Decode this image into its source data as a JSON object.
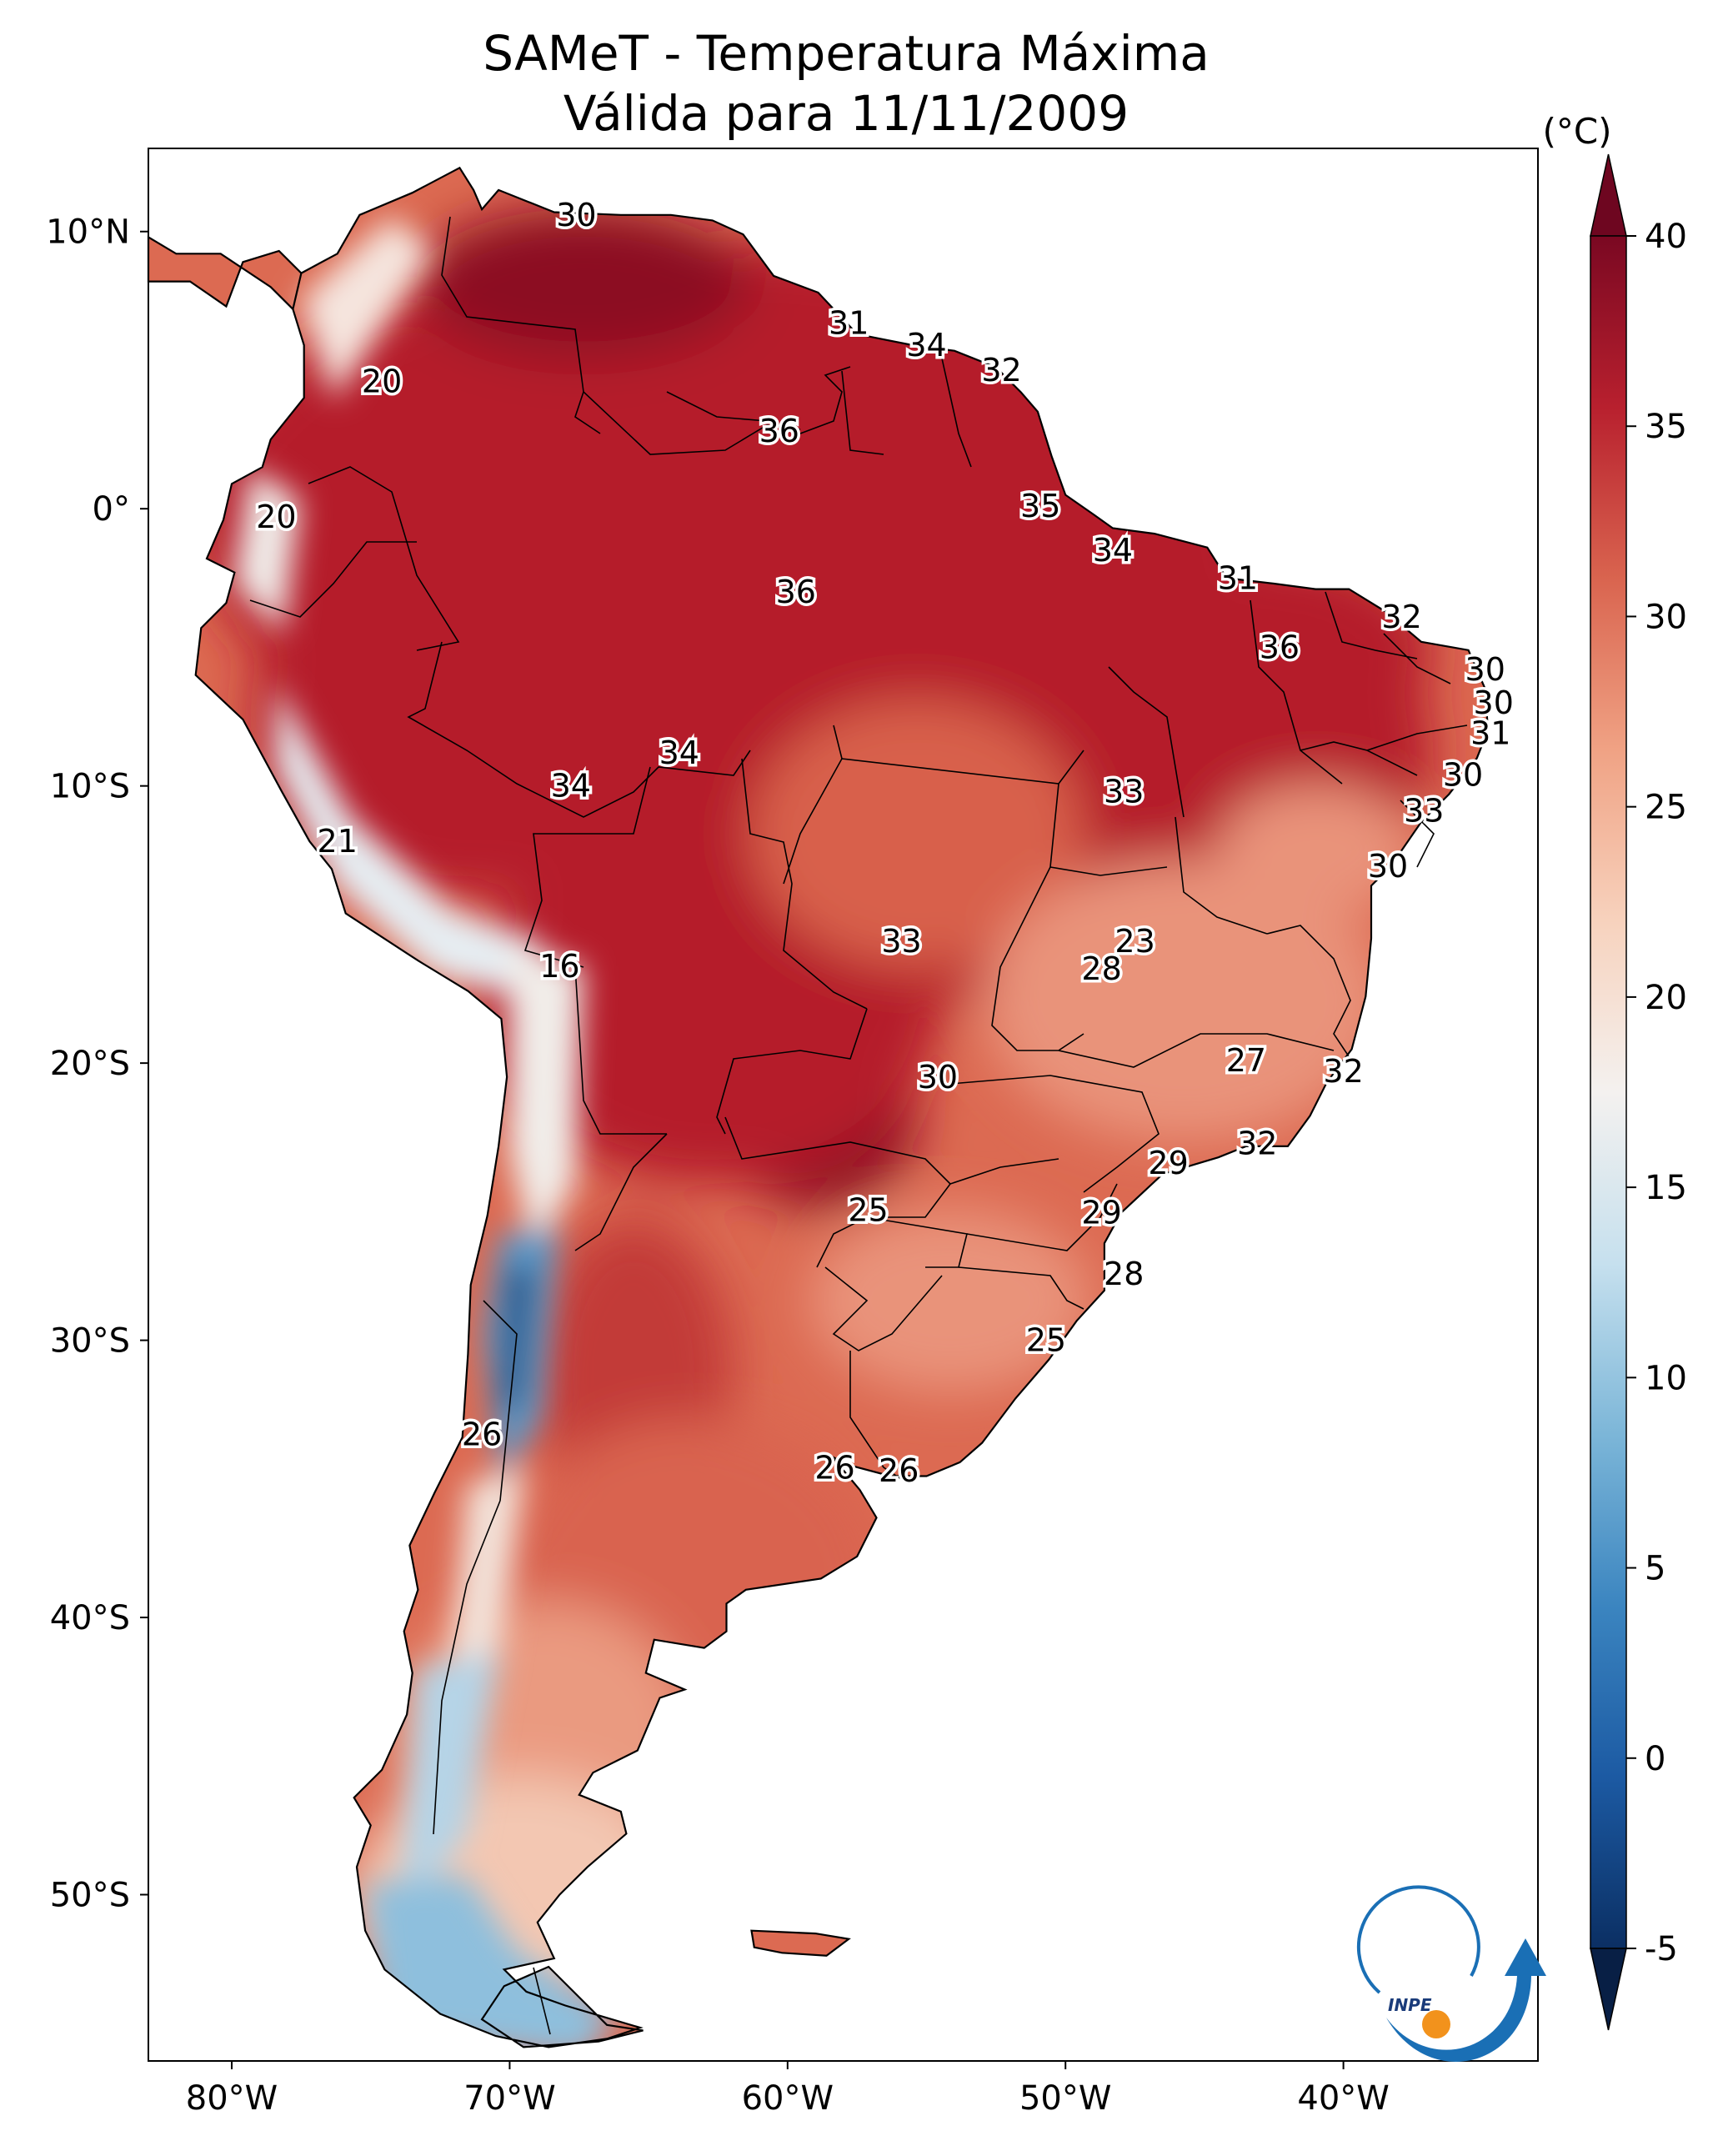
{
  "title": {
    "line1": "SAMeT - Temperatura Máxima",
    "line2": "Válida para 11/11/2009"
  },
  "map": {
    "region": "South America",
    "variable": "maximum temperature",
    "extent": {
      "lon_min": -83,
      "lon_max": -33,
      "lat_min": -56,
      "lat_max": 13
    },
    "lat_ticks": [
      {
        "value": 10,
        "label": "10°N"
      },
      {
        "value": 0,
        "label": "0°"
      },
      {
        "value": -10,
        "label": "10°S"
      },
      {
        "value": -20,
        "label": "20°S"
      },
      {
        "value": -30,
        "label": "30°S"
      },
      {
        "value": -40,
        "label": "40°S"
      },
      {
        "value": -50,
        "label": "50°S"
      }
    ],
    "lon_ticks": [
      {
        "value": -80,
        "label": "80°W"
      },
      {
        "value": -70,
        "label": "70°W"
      },
      {
        "value": -60,
        "label": "60°W"
      },
      {
        "value": -50,
        "label": "50°W"
      },
      {
        "value": -40,
        "label": "40°W"
      }
    ]
  },
  "labels": [
    {
      "text": "30",
      "lon": -67.6,
      "lat": 10.6
    },
    {
      "text": "31",
      "lon": -57.8,
      "lat": 6.7
    },
    {
      "text": "34",
      "lon": -55.0,
      "lat": 5.9
    },
    {
      "text": "32",
      "lon": -52.3,
      "lat": 5.0
    },
    {
      "text": "20",
      "lon": -74.6,
      "lat": 4.6
    },
    {
      "text": "36",
      "lon": -60.3,
      "lat": 2.8
    },
    {
      "text": "20",
      "lon": -78.4,
      "lat": -0.3
    },
    {
      "text": "35",
      "lon": -50.9,
      "lat": 0.1
    },
    {
      "text": "34",
      "lon": -48.3,
      "lat": -1.5
    },
    {
      "text": "31",
      "lon": -43.8,
      "lat": -2.5
    },
    {
      "text": "36",
      "lon": -59.7,
      "lat": -3.0
    },
    {
      "text": "32",
      "lon": -37.9,
      "lat": -3.9
    },
    {
      "text": "36",
      "lon": -42.3,
      "lat": -5.0
    },
    {
      "text": "30",
      "lon": -34.9,
      "lat": -5.8
    },
    {
      "text": "30",
      "lon": -34.6,
      "lat": -7.0
    },
    {
      "text": "31",
      "lon": -34.7,
      "lat": -8.1
    },
    {
      "text": "34",
      "lon": -63.9,
      "lat": -8.8
    },
    {
      "text": "30",
      "lon": -35.7,
      "lat": -9.6
    },
    {
      "text": "34",
      "lon": -67.8,
      "lat": -10.0
    },
    {
      "text": "33",
      "lon": -47.9,
      "lat": -10.2
    },
    {
      "text": "33",
      "lon": -37.1,
      "lat": -10.9
    },
    {
      "text": "21",
      "lon": -76.2,
      "lat": -12.0
    },
    {
      "text": "30",
      "lon": -38.4,
      "lat": -12.9
    },
    {
      "text": "23",
      "lon": -47.5,
      "lat": -15.6
    },
    {
      "text": "33",
      "lon": -55.9,
      "lat": -15.6
    },
    {
      "text": "28",
      "lon": -48.7,
      "lat": -16.6
    },
    {
      "text": "16",
      "lon": -68.2,
      "lat": -16.5
    },
    {
      "text": "27",
      "lon": -43.5,
      "lat": -19.9
    },
    {
      "text": "32",
      "lon": -40.0,
      "lat": -20.3
    },
    {
      "text": "30",
      "lon": -54.6,
      "lat": -20.5
    },
    {
      "text": "32",
      "lon": -43.1,
      "lat": -22.9
    },
    {
      "text": "29",
      "lon": -46.3,
      "lat": -23.6
    },
    {
      "text": "25",
      "lon": -57.1,
      "lat": -25.3
    },
    {
      "text": "29",
      "lon": -48.7,
      "lat": -25.4
    },
    {
      "text": "28",
      "lon": -47.9,
      "lat": -27.6
    },
    {
      "text": "25",
      "lon": -50.7,
      "lat": -30.0
    },
    {
      "text": "26",
      "lon": -71.0,
      "lat": -33.4
    },
    {
      "text": "26",
      "lon": -58.3,
      "lat": -34.6
    },
    {
      "text": "26",
      "lon": -56.0,
      "lat": -34.7
    }
  ],
  "colorbar": {
    "unit": "(°C)",
    "min": -5,
    "max": 40,
    "ticks": [
      {
        "value": 40,
        "label": "40"
      },
      {
        "value": 35,
        "label": "35"
      },
      {
        "value": 30,
        "label": "30"
      },
      {
        "value": 25,
        "label": "25"
      },
      {
        "value": 20,
        "label": "20"
      },
      {
        "value": 15,
        "label": "15"
      },
      {
        "value": 10,
        "label": "10"
      },
      {
        "value": 5,
        "label": "5"
      },
      {
        "value": 0,
        "label": "0"
      },
      {
        "value": -5,
        "label": "-5"
      }
    ],
    "colors": [
      "#0b2f63",
      "#1c5aa3",
      "#3b85c0",
      "#7cb6d8",
      "#c6e0ee",
      "#f4f1ef",
      "#f7d2bd",
      "#f0a284",
      "#d9644f",
      "#b8202e",
      "#7a0822"
    ]
  },
  "logo": {
    "text": "INPE",
    "colors": {
      "arc": "#1a6fb5",
      "dot": "#f2921c"
    }
  }
}
